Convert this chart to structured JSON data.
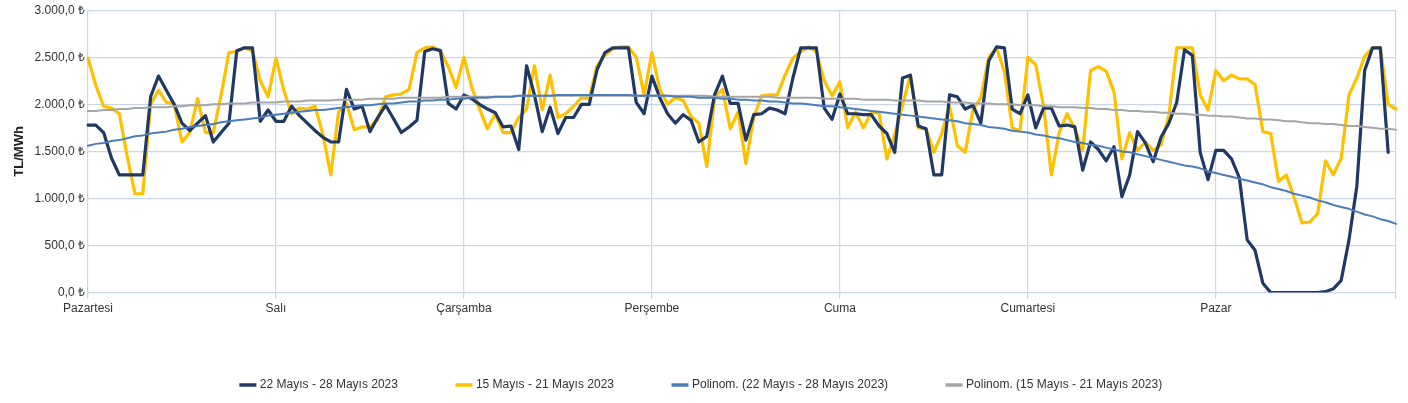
{
  "chart_data": {
    "type": "line",
    "ylabel": "TL/MWh",
    "categories": [
      "Pazartesi",
      null,
      null,
      null,
      null,
      null,
      null,
      null,
      null,
      null,
      null,
      null,
      null,
      null,
      null,
      null,
      null,
      null,
      null,
      null,
      null,
      null,
      null,
      null,
      "Salı",
      null,
      null,
      null,
      null,
      null,
      null,
      null,
      null,
      null,
      null,
      null,
      null,
      null,
      null,
      null,
      null,
      null,
      null,
      null,
      null,
      null,
      null,
      null,
      "Çarşamba",
      null,
      null,
      null,
      null,
      null,
      null,
      null,
      null,
      null,
      null,
      null,
      null,
      null,
      null,
      null,
      null,
      null,
      null,
      null,
      null,
      null,
      null,
      null,
      "Perşembe",
      null,
      null,
      null,
      null,
      null,
      null,
      null,
      null,
      null,
      null,
      null,
      null,
      null,
      null,
      null,
      null,
      null,
      null,
      null,
      null,
      null,
      null,
      null,
      "Cuma",
      null,
      null,
      null,
      null,
      null,
      null,
      null,
      null,
      null,
      null,
      null,
      null,
      null,
      null,
      null,
      null,
      null,
      null,
      null,
      null,
      null,
      null,
      null,
      "Cumartesi",
      null,
      null,
      null,
      null,
      null,
      null,
      null,
      null,
      null,
      null,
      null,
      null,
      null,
      null,
      null,
      null,
      null,
      null,
      null,
      null,
      null,
      null,
      null,
      "Pazar",
      null,
      null,
      null,
      null,
      null,
      null,
      null,
      null,
      null,
      null,
      null,
      null,
      null,
      null,
      null,
      null,
      null,
      null,
      null,
      null,
      null,
      null,
      null
    ],
    "ylim": [
      0,
      3000
    ],
    "yticks": [
      {
        "value": 0,
        "label": "0,0 ₺"
      },
      {
        "value": 500,
        "label": "500,0 ₺"
      },
      {
        "value": 1000,
        "label": "1.000,0 ₺"
      },
      {
        "value": 1500,
        "label": "1.500,0 ₺"
      },
      {
        "value": 2000,
        "label": "2.000,0 ₺"
      },
      {
        "value": 2500,
        "label": "2.500,0 ₺"
      },
      {
        "value": 3000,
        "label": "3.000,0 ₺"
      }
    ],
    "grid": true,
    "legend": "bottom",
    "marker": "none",
    "line_style": "solid",
    "series": [
      {
        "name": "22 Mayıs - 28 Mayıs 2023",
        "color": "#1f3864",
        "values": [
          1780,
          1780,
          1700,
          1430,
          1250,
          1250,
          1250,
          1250,
          2080,
          2300,
          2150,
          2000,
          1800,
          1720,
          1800,
          1880,
          1600,
          1700,
          1800,
          2570,
          2600,
          2600,
          1820,
          1940,
          1820,
          1820,
          1980,
          1880,
          1800,
          1720,
          1650,
          1600,
          1600,
          2160,
          1950,
          1980,
          1710,
          1860,
          1990,
          1850,
          1700,
          1760,
          1830,
          2560,
          2590,
          2570,
          2010,
          1950,
          2100,
          2060,
          2000,
          1950,
          1910,
          1760,
          1770,
          1520,
          2410,
          2100,
          1710,
          1970,
          1690,
          1860,
          1860,
          2000,
          2000,
          2370,
          2550,
          2600,
          2600,
          2600,
          2020,
          1900,
          2300,
          2070,
          1900,
          1800,
          1890,
          1830,
          1600,
          1660,
          2100,
          2300,
          2010,
          2010,
          1620,
          1890,
          1900,
          1960,
          1940,
          1900,
          2280,
          2600,
          2600,
          2600,
          1960,
          1840,
          2110,
          1900,
          1900,
          1890,
          1890,
          1770,
          1690,
          1490,
          2280,
          2310,
          1770,
          1740,
          1250,
          1250,
          2100,
          2080,
          1950,
          1990,
          1800,
          2460,
          2610,
          2600,
          1950,
          1900,
          2100,
          1750,
          1960,
          1960,
          1770,
          1780,
          1760,
          1300,
          1600,
          1520,
          1400,
          1550,
          1020,
          1250,
          1710,
          1590,
          1390,
          1650,
          1800,
          2020,
          2580,
          2520,
          1490,
          1200,
          1510,
          1510,
          1420,
          1220,
          560,
          450,
          100,
          0,
          0,
          0,
          0,
          0,
          0,
          0,
          10,
          40,
          130,
          560,
          1130,
          2360,
          2600,
          2600,
          1490,
          null
        ]
      },
      {
        "name": "15 Mayıs - 21 Mayıs 2023",
        "color": "#ffc000",
        "values": [
          2490,
          2200,
          1980,
          1960,
          1900,
          1450,
          1050,
          1050,
          2000,
          2150,
          2020,
          2010,
          1600,
          1700,
          2060,
          1700,
          1700,
          2100,
          2550,
          2560,
          2600,
          2570,
          2250,
          2080,
          2490,
          2150,
          1900,
          1960,
          1950,
          1980,
          1680,
          1250,
          1920,
          2010,
          1730,
          1760,
          1760,
          1840,
          2080,
          2100,
          2110,
          2160,
          2550,
          2600,
          2610,
          2570,
          2400,
          2180,
          2500,
          2180,
          1950,
          1740,
          1900,
          1700,
          1700,
          1860,
          1950,
          2410,
          1940,
          2310,
          1860,
          1900,
          1980,
          2070,
          2060,
          2410,
          2520,
          2590,
          2610,
          2610,
          2500,
          2100,
          2550,
          2160,
          2000,
          2070,
          2040,
          1870,
          1800,
          1340,
          2070,
          2160,
          1740,
          1920,
          1370,
          1860,
          2090,
          2100,
          2100,
          2310,
          2490,
          2560,
          2610,
          2560,
          2250,
          2090,
          2240,
          1750,
          1920,
          1750,
          1910,
          1910,
          1420,
          1680,
          1990,
          2310,
          1750,
          1740,
          1490,
          1690,
          1980,
          1560,
          1490,
          1950,
          2070,
          2500,
          2600,
          2350,
          1750,
          1720,
          2500,
          2420,
          1980,
          1250,
          1700,
          1900,
          1740,
          1510,
          2360,
          2400,
          2350,
          2130,
          1420,
          1700,
          1510,
          1600,
          1510,
          1570,
          1880,
          2600,
          2600,
          2600,
          2100,
          1940,
          2360,
          2250,
          2310,
          2270,
          2270,
          2210,
          1710,
          1690,
          1180,
          1250,
          1010,
          740,
          750,
          840,
          1400,
          1250,
          1430,
          2100,
          2280,
          2510,
          2600,
          2600,
          2000,
          1950
        ]
      },
      {
        "name": "Polinom. (22 Mayıs - 28 Mayıs 2023)",
        "color": "#4a7ebb",
        "values": [
          1560,
          1580,
          1590,
          1610,
          1620,
          1640,
          1660,
          1670,
          1690,
          1700,
          1710,
          1730,
          1740,
          1760,
          1770,
          1780,
          1790,
          1810,
          1820,
          1830,
          1840,
          1850,
          1860,
          1880,
          1890,
          1900,
          1910,
          1920,
          1930,
          1940,
          1940,
          1950,
          1960,
          1970,
          1980,
          1990,
          1990,
          2000,
          2010,
          2010,
          2020,
          2030,
          2030,
          2040,
          2040,
          2050,
          2050,
          2060,
          2060,
          2070,
          2070,
          2070,
          2080,
          2080,
          2080,
          2090,
          2090,
          2090,
          2090,
          2090,
          2100,
          2100,
          2100,
          2100,
          2100,
          2100,
          2100,
          2100,
          2100,
          2100,
          2090,
          2090,
          2090,
          2090,
          2090,
          2080,
          2080,
          2080,
          2070,
          2070,
          2070,
          2060,
          2060,
          2050,
          2050,
          2040,
          2040,
          2030,
          2030,
          2020,
          2010,
          2010,
          2000,
          1990,
          1980,
          1980,
          1970,
          1960,
          1950,
          1940,
          1930,
          1920,
          1910,
          1900,
          1890,
          1880,
          1870,
          1860,
          1850,
          1840,
          1830,
          1820,
          1800,
          1790,
          1780,
          1760,
          1750,
          1740,
          1720,
          1710,
          1700,
          1680,
          1670,
          1650,
          1640,
          1620,
          1600,
          1590,
          1570,
          1560,
          1540,
          1520,
          1500,
          1490,
          1470,
          1450,
          1430,
          1410,
          1390,
          1370,
          1350,
          1340,
          1320,
          1290,
          1270,
          1250,
          1230,
          1210,
          1190,
          1170,
          1150,
          1120,
          1100,
          1080,
          1050,
          1030,
          1010,
          980,
          960,
          930,
          910,
          890,
          860,
          830,
          810,
          780,
          760,
          730
        ]
      },
      {
        "name": "Polinom. (15 Mayıs - 21 Mayıs 2023)",
        "color": "#a5a5a5",
        "values": [
          1930,
          1930,
          1940,
          1940,
          1950,
          1950,
          1960,
          1960,
          1970,
          1970,
          1970,
          1980,
          1980,
          1990,
          1990,
          1990,
          2000,
          2000,
          2010,
          2010,
          2010,
          2020,
          2020,
          2020,
          2020,
          2030,
          2030,
          2030,
          2040,
          2040,
          2040,
          2040,
          2050,
          2050,
          2050,
          2050,
          2060,
          2060,
          2060,
          2060,
          2070,
          2070,
          2070,
          2070,
          2070,
          2070,
          2080,
          2080,
          2080,
          2080,
          2080,
          2080,
          2080,
          2080,
          2080,
          2090,
          2090,
          2090,
          2090,
          2090,
          2090,
          2090,
          2090,
          2090,
          2090,
          2090,
          2090,
          2090,
          2090,
          2090,
          2090,
          2090,
          2090,
          2090,
          2090,
          2090,
          2090,
          2090,
          2090,
          2090,
          2080,
          2080,
          2080,
          2080,
          2080,
          2080,
          2080,
          2080,
          2070,
          2070,
          2070,
          2070,
          2070,
          2070,
          2060,
          2060,
          2060,
          2060,
          2060,
          2050,
          2050,
          2050,
          2050,
          2040,
          2040,
          2040,
          2040,
          2030,
          2030,
          2030,
          2020,
          2020,
          2020,
          2010,
          2010,
          2010,
          2000,
          2000,
          2000,
          1990,
          1990,
          1990,
          1980,
          1980,
          1970,
          1970,
          1970,
          1960,
          1960,
          1950,
          1950,
          1940,
          1940,
          1930,
          1930,
          1920,
          1920,
          1910,
          1910,
          1900,
          1900,
          1890,
          1890,
          1880,
          1880,
          1870,
          1870,
          1860,
          1850,
          1850,
          1840,
          1840,
          1830,
          1820,
          1820,
          1810,
          1800,
          1800,
          1790,
          1790,
          1780,
          1770,
          1770,
          1760,
          1750,
          1740,
          1740,
          1730
        ]
      }
    ]
  }
}
